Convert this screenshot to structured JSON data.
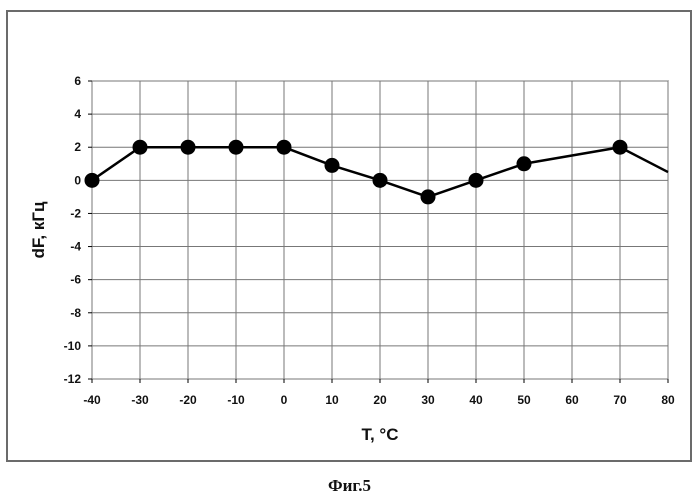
{
  "figure_caption": "Фиг.5",
  "chart_data": {
    "type": "line",
    "title": "",
    "xlabel": "T, °C",
    "ylabel": "dF, кГц",
    "xlim": [
      -40,
      80
    ],
    "ylim": [
      -12,
      6
    ],
    "x_ticks": [
      -40,
      -30,
      -20,
      -10,
      0,
      10,
      20,
      30,
      40,
      50,
      60,
      70,
      80
    ],
    "y_ticks": [
      6,
      4,
      2,
      0,
      -2,
      -4,
      -6,
      -8,
      -10,
      -12
    ],
    "grid": true,
    "legend": "none",
    "series": [
      {
        "x": [
          -40,
          -30,
          -20,
          -10,
          0,
          10,
          20,
          30,
          40,
          50,
          70,
          80
        ],
        "y": [
          0,
          2,
          2,
          2,
          2,
          0.9,
          0,
          -1,
          0,
          1,
          2,
          0.5
        ],
        "markers": [
          true,
          true,
          true,
          true,
          true,
          true,
          true,
          true,
          true,
          true,
          true,
          false
        ],
        "color": "#000000"
      }
    ]
  }
}
